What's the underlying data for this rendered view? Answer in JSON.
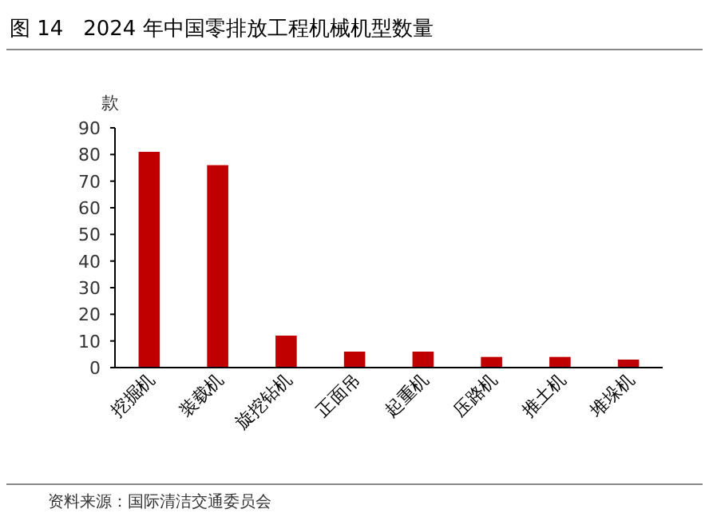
{
  "chart_data": {
    "type": "bar",
    "title": "图 14   2024 年中国零排放工程机械机型数量",
    "ylabel": "款",
    "categories": [
      "挖掘机",
      "装载机",
      "旋挖钻机",
      "正面吊",
      "起重机",
      "压路机",
      "推土机",
      "堆垛机"
    ],
    "values": [
      81,
      76,
      12,
      6,
      6,
      4,
      4,
      3
    ],
    "color": "#c00000",
    "ylim": [
      0,
      90
    ],
    "yticks": [
      0,
      10,
      20,
      30,
      40,
      50,
      60,
      70,
      80,
      90
    ],
    "grid": false,
    "annotations": [
      "资料来源：国际清洁交通委员会"
    ]
  }
}
